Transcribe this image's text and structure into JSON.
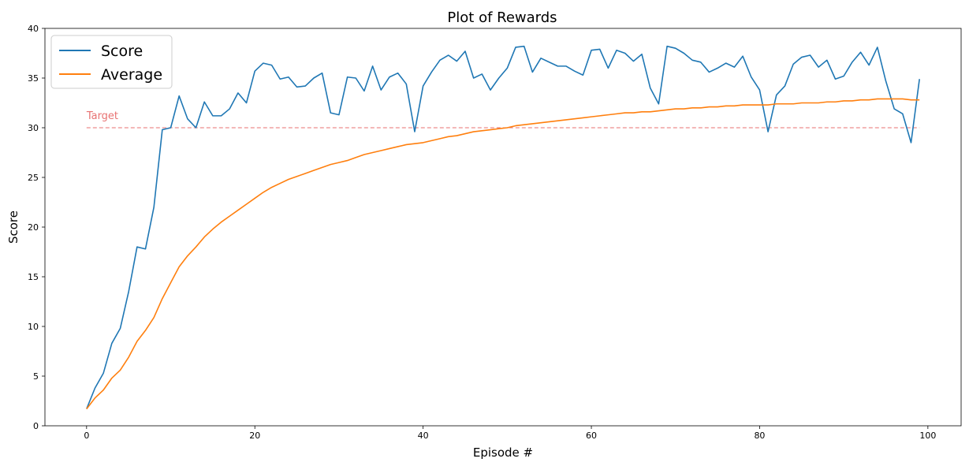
{
  "chart_data": {
    "type": "line",
    "title": "Plot of Rewards",
    "xlabel": "Episode #",
    "ylabel": "Score",
    "xlim": [
      -4.95,
      103.95
    ],
    "ylim": [
      0,
      40
    ],
    "xticks": [
      0,
      20,
      40,
      60,
      80,
      100
    ],
    "yticks": [
      0,
      5,
      10,
      15,
      20,
      25,
      30,
      35,
      40
    ],
    "grid": false,
    "legend_position": "top-left",
    "series": [
      {
        "name": "Score",
        "color": "#1f77b4",
        "values": [
          1.7,
          3.8,
          5.3,
          8.3,
          9.8,
          13.5,
          18.0,
          17.8,
          22.0,
          29.8,
          30.0,
          33.2,
          30.9,
          30.0,
          32.6,
          31.2,
          31.2,
          31.9,
          33.5,
          32.5,
          35.7,
          36.5,
          36.3,
          34.9,
          35.1,
          34.1,
          34.2,
          35.0,
          35.5,
          31.5,
          31.3,
          35.1,
          35.0,
          33.7,
          36.2,
          33.8,
          35.1,
          35.5,
          34.4,
          29.6,
          34.2,
          35.6,
          36.8,
          37.3,
          36.7,
          37.7,
          35.0,
          35.4,
          33.8,
          35.0,
          36.0,
          38.1,
          38.2,
          35.6,
          37.0,
          36.6,
          36.2,
          36.2,
          35.7,
          35.3,
          37.8,
          37.9,
          36.0,
          37.8,
          37.5,
          36.7,
          37.4,
          34.0,
          32.4,
          38.2,
          38.0,
          37.5,
          36.8,
          36.6,
          35.6,
          36.0,
          36.5,
          36.1,
          37.2,
          35.1,
          33.8,
          29.6,
          33.3,
          34.2,
          36.4,
          37.1,
          37.3,
          36.1,
          36.8,
          34.9,
          35.2,
          36.6,
          37.6,
          36.3,
          38.1,
          34.7,
          31.9,
          31.4,
          28.5,
          34.9
        ]
      },
      {
        "name": "Average",
        "color": "#ff7f0e",
        "values": [
          1.7,
          2.8,
          3.6,
          4.8,
          5.6,
          6.9,
          8.5,
          9.6,
          10.9,
          12.8,
          14.4,
          16.0,
          17.1,
          18.0,
          19.0,
          19.8,
          20.5,
          21.1,
          21.7,
          22.3,
          22.9,
          23.5,
          24.0,
          24.4,
          24.8,
          25.1,
          25.4,
          25.7,
          26.0,
          26.3,
          26.5,
          26.7,
          27.0,
          27.3,
          27.5,
          27.7,
          27.9,
          28.1,
          28.3,
          28.4,
          28.5,
          28.7,
          28.9,
          29.1,
          29.2,
          29.4,
          29.6,
          29.7,
          29.8,
          29.9,
          30.0,
          30.2,
          30.3,
          30.4,
          30.5,
          30.6,
          30.7,
          30.8,
          30.9,
          31.0,
          31.1,
          31.2,
          31.3,
          31.4,
          31.5,
          31.5,
          31.6,
          31.6,
          31.7,
          31.8,
          31.9,
          31.9,
          32.0,
          32.0,
          32.1,
          32.1,
          32.2,
          32.2,
          32.3,
          32.3,
          32.3,
          32.3,
          32.4,
          32.4,
          32.4,
          32.5,
          32.5,
          32.5,
          32.6,
          32.6,
          32.7,
          32.7,
          32.8,
          32.8,
          32.9,
          32.9,
          32.9,
          32.9,
          32.8,
          32.8
        ]
      }
    ],
    "reference_line": {
      "label": "Target",
      "y": 30,
      "x_range": [
        0,
        99
      ],
      "color": "#e87272"
    }
  }
}
